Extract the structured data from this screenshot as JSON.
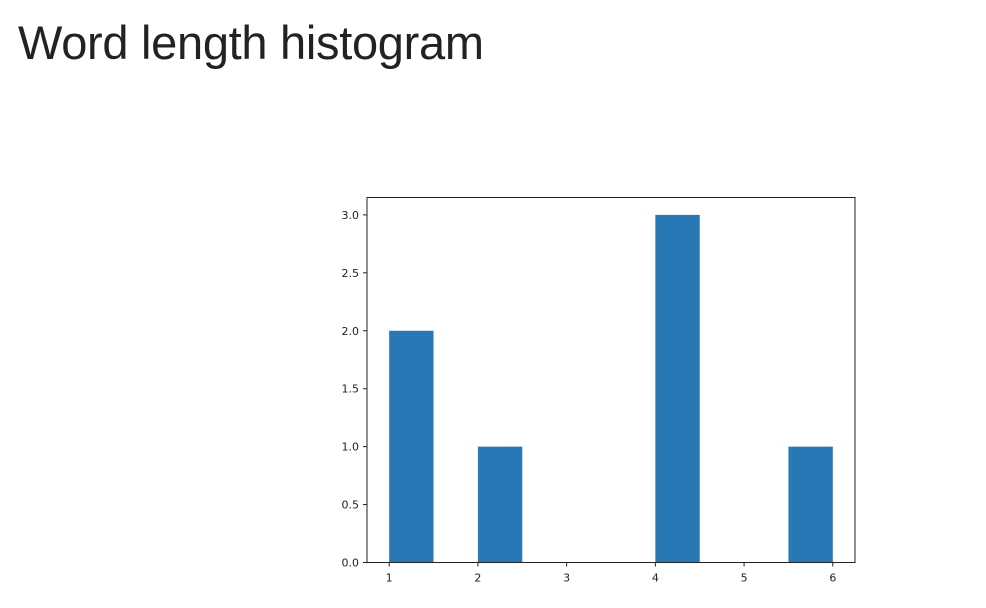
{
  "page": {
    "title": "Word length histogram"
  },
  "chart_data": {
    "type": "bar",
    "title": "",
    "xlabel": "",
    "ylabel": "",
    "bars": [
      {
        "x_start": 1.0,
        "x_end": 1.5,
        "value": 2
      },
      {
        "x_start": 2.0,
        "x_end": 2.5,
        "value": 1
      },
      {
        "x_start": 2.5,
        "x_end": 3.0,
        "value": 0
      },
      {
        "x_start": 3.0,
        "x_end": 3.5,
        "value": 0
      },
      {
        "x_start": 4.0,
        "x_end": 4.5,
        "value": 3
      },
      {
        "x_start": 5.5,
        "x_end": 6.0,
        "value": 1
      }
    ],
    "xlim": [
      0.75,
      6.25
    ],
    "ylim": [
      0,
      3.15
    ],
    "x_ticks": [
      "1",
      "2",
      "3",
      "4",
      "5",
      "6"
    ],
    "y_ticks": [
      "0.0",
      "0.5",
      "1.0",
      "1.5",
      "2.0",
      "2.5",
      "3.0"
    ],
    "bar_color": "#2878b5",
    "grid": false,
    "legend": "none"
  }
}
